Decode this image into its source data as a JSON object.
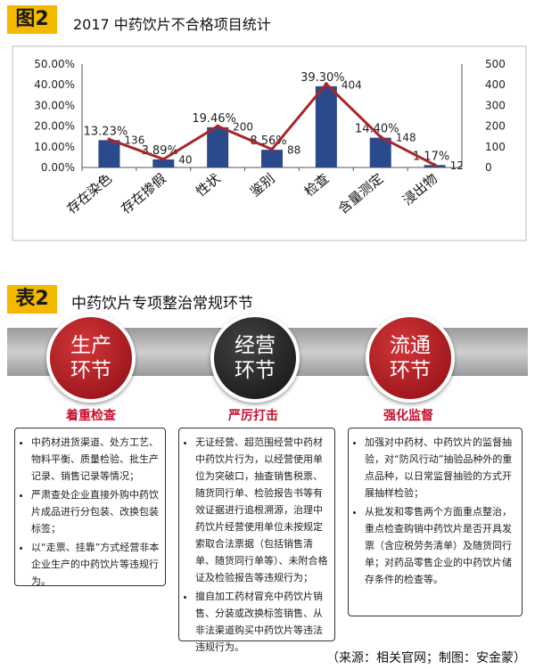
{
  "figure1": {
    "tag": "图2",
    "title": "2017 中药饮片不合格项目统计"
  },
  "chart_data": {
    "type": "bar",
    "categories": [
      "存在染色",
      "存在掺假",
      "性状",
      "鉴别",
      "检查",
      "含量测定",
      "浸出物"
    ],
    "series": [
      {
        "values": [
          13.23,
          3.89,
          19.46,
          8.56,
          39.3,
          14.4,
          1.17
        ],
        "data_labels": [
          "13.23%",
          "3.89%",
          "19.46%",
          "8.56%",
          "39.30%",
          "14.40%",
          "1.17%"
        ]
      },
      {
        "values": [
          136,
          40,
          200,
          88,
          404,
          148,
          12
        ],
        "data_labels": [
          "136",
          "40",
          "200",
          "88",
          "404",
          "148",
          "12"
        ]
      }
    ],
    "left_axis": {
      "ticks": [
        "0.00%",
        "10.00%",
        "20.00%",
        "30.00%",
        "40.00%",
        "50.00%"
      ],
      "ylim": [
        0,
        50
      ]
    },
    "right_axis": {
      "ticks": [
        "0",
        "100",
        "200",
        "300",
        "400",
        "500"
      ],
      "ylim": [
        0,
        500
      ]
    },
    "grid": false,
    "colors": {
      "bar": "#2b4a8b",
      "line": "#a8262a"
    }
  },
  "table2": {
    "tag": "表2",
    "title": "中药饮片专项整治常规环节",
    "stages": [
      {
        "name1": "生产",
        "name2": "环节",
        "heading": "着重检查",
        "items": [
          "中药材进货渠道、处方工艺、物料平衡、质量检验、批生产记录、销售记录等情况；",
          "严肃查处企业直接外购中药饮片成品进行分包装、改换包装标签；",
          "以“走票、挂靠”方式经营非本企业生产的中药饮片等违规行为。"
        ]
      },
      {
        "name1": "经营",
        "name2": "环节",
        "heading": "严厉打击",
        "items": [
          "无证经营、超范围经营中药材中药饮片行为，以经营使用单位为突破口，抽查销售税票、随货同行单、检验报告书等有效证据进行追根溯源，治理中药饮片经营使用单位未按规定索取合法票据（包括销售清单、随货同行单等）、未附合格证及检验报告等违规行为；",
          "擅自加工药材冒充中药饮片销售、分装或改换标签销售、从非法渠道购买中药饮片等违法违规行为。"
        ]
      },
      {
        "name1": "流通",
        "name2": "环节",
        "heading": "强化监督",
        "items": [
          "加强对中药材、中药饮片的监督抽验，对“防风行动”抽验品种外的重点品种，以日常监督抽验的方式开展抽样检验；",
          "从批发和零售两个方面重点整治，重点检查购销中药饮片是否开具发票（含应税劳务清单）及随货同行单；对药品零售企业的中药饮片储存条件的检查等。"
        ]
      }
    ]
  },
  "source": "（来源：相关官网；制图：安金蒙）"
}
